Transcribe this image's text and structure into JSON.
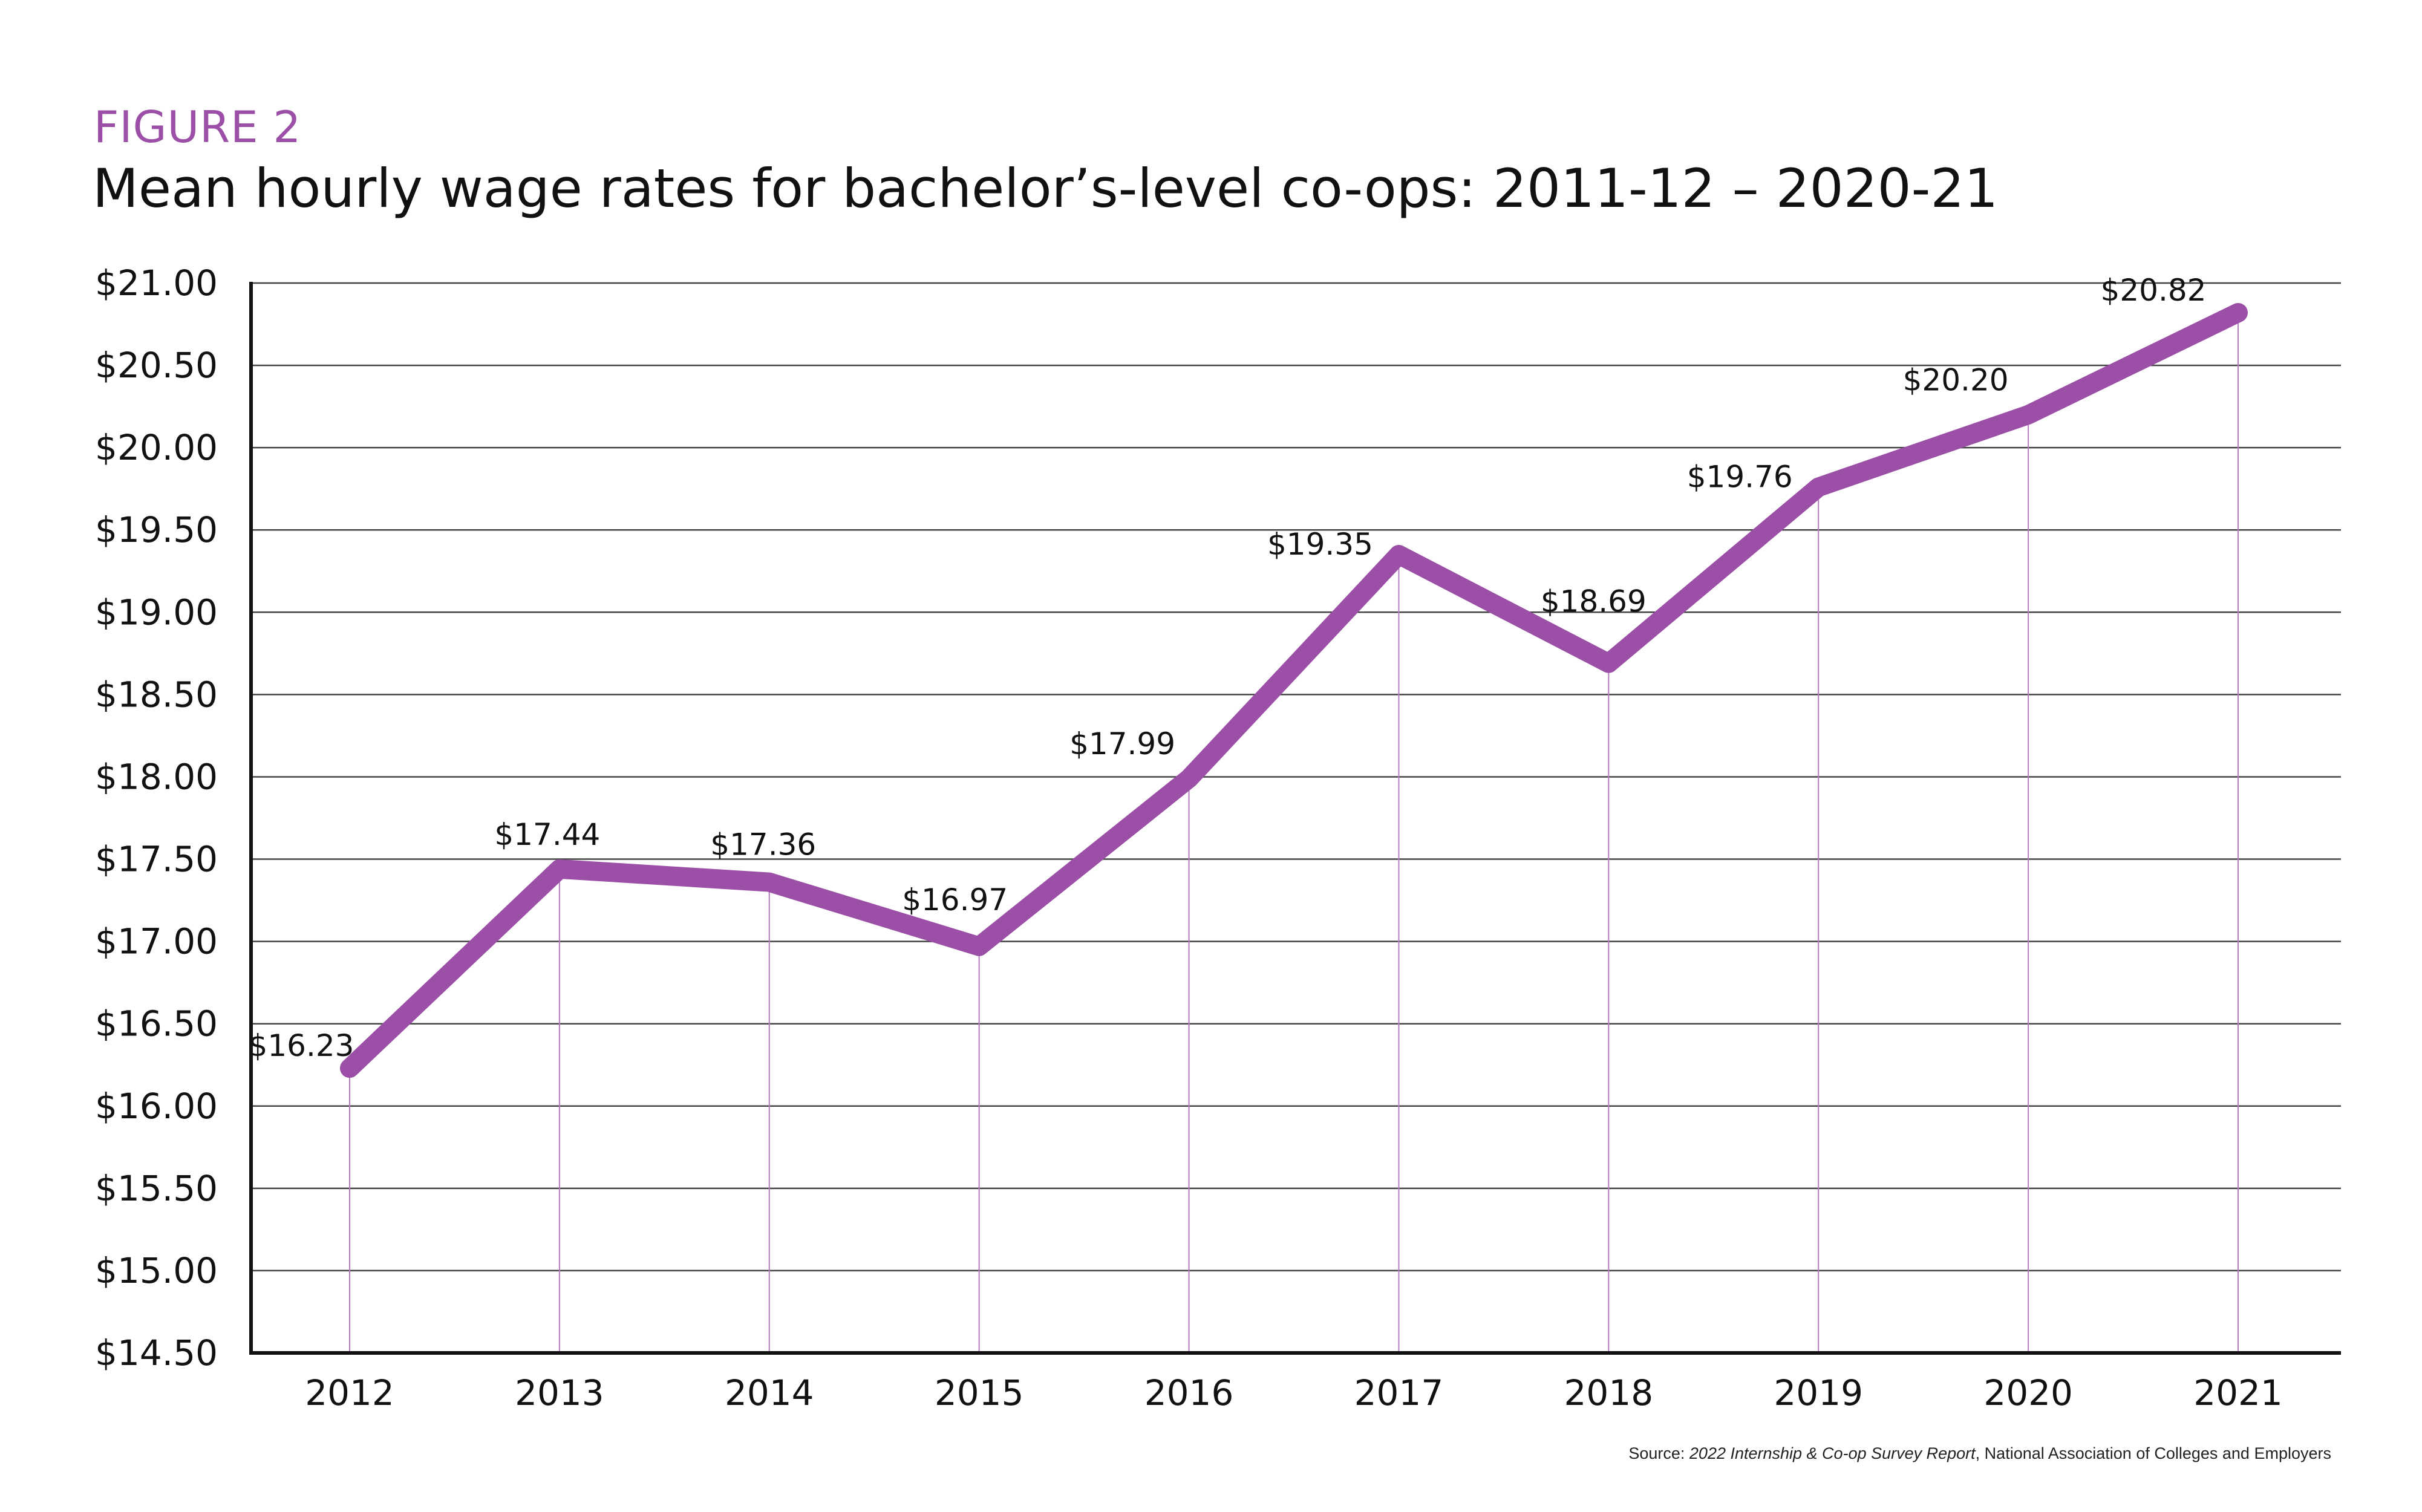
{
  "figure_label": "FIGURE 2",
  "figure_title": "Mean hourly wage rates for bachelor’s-level co-ops: 2011-12 – 2020-21",
  "source": {
    "prefix": "Source: ",
    "report": "2022 Internship & Co-op Survey Report",
    "suffix": ", National Association of Colleges and Employers"
  },
  "colors": {
    "line": "#9b4fa6",
    "gridline": "#444444",
    "drop_line": "#b57dc0",
    "axis": "#111111"
  },
  "chart_data": {
    "type": "line",
    "title": "Mean hourly wage rates for bachelor’s-level co-ops: 2011-12 – 2020-21",
    "xlabel": "",
    "ylabel": "",
    "categories": [
      "2012",
      "2013",
      "2014",
      "2015",
      "2016",
      "2017",
      "2018",
      "2019",
      "2020",
      "2021"
    ],
    "series": [
      {
        "name": "Mean hourly wage",
        "values": [
          16.23,
          17.44,
          17.36,
          16.97,
          17.99,
          19.35,
          18.69,
          19.76,
          20.2,
          20.82
        ],
        "labels": [
          "$16.23",
          "$17.44",
          "$17.36",
          "$16.97",
          "$17.99",
          "$19.35",
          "$18.69",
          "$19.76",
          "$20.20",
          "$20.82"
        ]
      }
    ],
    "ylim": [
      14.5,
      21.0
    ],
    "yticks": [
      14.5,
      15.0,
      15.5,
      16.0,
      16.5,
      17.0,
      17.5,
      18.0,
      18.5,
      19.0,
      19.5,
      20.0,
      20.5,
      21.0
    ],
    "ytick_labels": [
      "$14.50",
      "$15.00",
      "$15.50",
      "$16.00",
      "$16.50",
      "$17.00",
      "$17.50",
      "$18.00",
      "$18.50",
      "$19.00",
      "$19.50",
      "$20.00",
      "$20.50",
      "$21.00"
    ],
    "grid": true,
    "legend": "none"
  }
}
